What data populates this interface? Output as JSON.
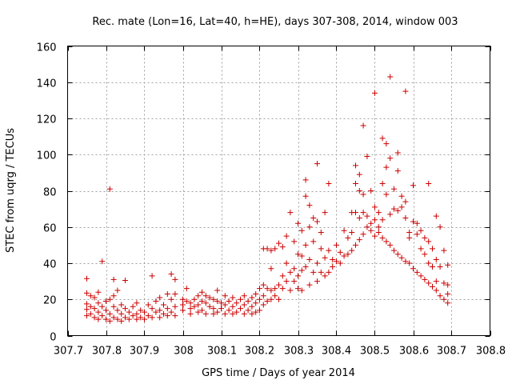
{
  "chart_data": {
    "type": "scatter",
    "title": "Rec. mate (Lon=16, Lat=40, h=HE), days 307-308, 2014, window 003",
    "xlabel": "GPS time / Days of year 2014",
    "ylabel": "STEC from uqrg / TECUs",
    "xlim": [
      307.7,
      308.8
    ],
    "ylim": [
      0,
      160
    ],
    "xticks": [
      307.7,
      307.8,
      307.9,
      308,
      308.1,
      308.2,
      308.3,
      308.4,
      308.5,
      308.6,
      308.7,
      308.8
    ],
    "xtick_labels": [
      "307.7",
      "307.8",
      "307.9",
      "308",
      "308.1",
      "308.2",
      "308.3",
      "308.4",
      "308.5",
      "308.6",
      "308.7",
      "308.8"
    ],
    "yticks": [
      0,
      20,
      40,
      60,
      80,
      100,
      120,
      140,
      160
    ],
    "ytick_labels": [
      "0",
      "20",
      "40",
      "60",
      "80",
      "100",
      "120",
      "140",
      "160"
    ],
    "grid": true,
    "marker": "+",
    "color": "#cc0000",
    "series": [
      {
        "name": "",
        "points": [
          [
            307.75,
            31.5
          ],
          [
            307.75,
            23.5
          ],
          [
            307.75,
            17.5
          ],
          [
            307.75,
            14.5
          ],
          [
            307.75,
            11
          ],
          [
            307.76,
            22
          ],
          [
            307.76,
            16
          ],
          [
            307.76,
            12
          ],
          [
            307.77,
            21
          ],
          [
            307.77,
            15
          ],
          [
            307.77,
            10
          ],
          [
            307.78,
            24
          ],
          [
            307.78,
            18
          ],
          [
            307.78,
            13
          ],
          [
            307.78,
            9
          ],
          [
            307.79,
            41
          ],
          [
            307.79,
            16
          ],
          [
            307.79,
            11
          ],
          [
            307.8,
            19
          ],
          [
            307.8,
            14
          ],
          [
            307.8,
            9
          ],
          [
            307.81,
            81
          ],
          [
            307.81,
            20
          ],
          [
            307.81,
            12
          ],
          [
            307.81,
            8
          ],
          [
            307.82,
            31
          ],
          [
            307.82,
            22
          ],
          [
            307.82,
            16
          ],
          [
            307.82,
            10
          ],
          [
            307.83,
            25
          ],
          [
            307.83,
            14
          ],
          [
            307.83,
            9
          ],
          [
            307.84,
            17
          ],
          [
            307.84,
            12
          ],
          [
            307.84,
            8
          ],
          [
            307.85,
            30.5
          ],
          [
            307.85,
            15
          ],
          [
            307.85,
            10
          ],
          [
            307.86,
            13
          ],
          [
            307.86,
            9
          ],
          [
            307.87,
            16
          ],
          [
            307.87,
            11
          ],
          [
            307.88,
            18
          ],
          [
            307.88,
            12
          ],
          [
            307.88,
            9
          ],
          [
            307.89,
            14
          ],
          [
            307.89,
            10
          ],
          [
            307.9,
            13
          ],
          [
            307.9,
            9
          ],
          [
            307.91,
            17
          ],
          [
            307.91,
            11
          ],
          [
            307.92,
            33
          ],
          [
            307.92,
            15
          ],
          [
            307.92,
            10
          ],
          [
            307.93,
            19
          ],
          [
            307.93,
            13
          ],
          [
            307.94,
            21
          ],
          [
            307.94,
            14
          ],
          [
            307.94,
            10
          ],
          [
            307.95,
            17
          ],
          [
            307.95,
            12
          ],
          [
            307.96,
            23
          ],
          [
            307.96,
            15
          ],
          [
            307.96,
            11
          ],
          [
            307.97,
            34
          ],
          [
            307.97,
            20
          ],
          [
            307.97,
            13
          ],
          [
            307.98,
            31
          ],
          [
            307.98,
            23
          ],
          [
            307.98,
            16
          ],
          [
            307.98,
            11
          ],
          [
            308.0,
            20
          ],
          [
            308.0,
            17
          ],
          [
            308.0,
            14
          ],
          [
            308.01,
            26
          ],
          [
            308.01,
            19
          ],
          [
            308.02,
            18
          ],
          [
            308.02,
            15
          ],
          [
            308.02,
            12
          ],
          [
            308.03,
            20
          ],
          [
            308.03,
            16
          ],
          [
            308.04,
            22
          ],
          [
            308.04,
            17
          ],
          [
            308.04,
            13
          ],
          [
            308.05,
            24
          ],
          [
            308.05,
            19
          ],
          [
            308.05,
            14
          ],
          [
            308.06,
            22
          ],
          [
            308.06,
            18
          ],
          [
            308.06,
            12
          ],
          [
            308.07,
            21
          ],
          [
            308.07,
            16
          ],
          [
            308.08,
            20
          ],
          [
            308.08,
            15
          ],
          [
            308.08,
            12
          ],
          [
            308.09,
            25
          ],
          [
            308.09,
            19
          ],
          [
            308.09,
            13
          ],
          [
            308.1,
            18
          ],
          [
            308.1,
            15
          ],
          [
            308.11,
            22
          ],
          [
            308.11,
            17
          ],
          [
            308.11,
            12
          ],
          [
            308.12,
            19
          ],
          [
            308.12,
            14
          ],
          [
            308.13,
            21
          ],
          [
            308.13,
            16
          ],
          [
            308.13,
            12
          ],
          [
            308.14,
            18
          ],
          [
            308.14,
            13
          ],
          [
            308.15,
            20
          ],
          [
            308.15,
            15
          ],
          [
            308.16,
            22
          ],
          [
            308.16,
            17
          ],
          [
            308.16,
            12
          ],
          [
            308.17,
            19
          ],
          [
            308.17,
            14
          ],
          [
            308.18,
            21
          ],
          [
            308.18,
            16
          ],
          [
            308.18,
            12
          ],
          [
            308.19,
            23
          ],
          [
            308.19,
            18
          ],
          [
            308.19,
            13
          ],
          [
            308.2,
            26
          ],
          [
            308.2,
            20
          ],
          [
            308.2,
            14
          ],
          [
            308.21,
            48
          ],
          [
            308.21,
            28
          ],
          [
            308.21,
            22
          ],
          [
            308.21,
            17
          ],
          [
            308.22,
            48
          ],
          [
            308.22,
            26
          ],
          [
            308.22,
            19
          ],
          [
            308.23,
            47
          ],
          [
            308.23,
            37
          ],
          [
            308.23,
            25
          ],
          [
            308.23,
            20
          ],
          [
            308.24,
            48
          ],
          [
            308.24,
            26
          ],
          [
            308.24,
            22
          ],
          [
            308.25,
            51
          ],
          [
            308.25,
            28
          ],
          [
            308.25,
            20
          ],
          [
            308.26,
            49
          ],
          [
            308.26,
            33
          ],
          [
            308.26,
            26
          ],
          [
            308.27,
            55
          ],
          [
            308.27,
            40
          ],
          [
            308.27,
            30
          ],
          [
            308.28,
            68
          ],
          [
            308.28,
            35
          ],
          [
            308.28,
            25
          ],
          [
            308.29,
            52
          ],
          [
            308.29,
            37
          ],
          [
            308.29,
            30
          ],
          [
            308.3,
            62
          ],
          [
            308.3,
            45
          ],
          [
            308.3,
            33
          ],
          [
            308.3,
            26
          ],
          [
            308.31,
            58
          ],
          [
            308.31,
            44
          ],
          [
            308.31,
            36
          ],
          [
            308.31,
            25
          ],
          [
            308.32,
            86
          ],
          [
            308.32,
            77
          ],
          [
            308.32,
            50
          ],
          [
            308.32,
            38
          ],
          [
            308.33,
            72
          ],
          [
            308.33,
            60
          ],
          [
            308.33,
            42
          ],
          [
            308.33,
            28
          ],
          [
            308.34,
            65
          ],
          [
            308.34,
            52
          ],
          [
            308.34,
            35
          ],
          [
            308.35,
            95
          ],
          [
            308.35,
            63
          ],
          [
            308.35,
            40
          ],
          [
            308.35,
            30
          ],
          [
            308.36,
            57
          ],
          [
            308.36,
            48
          ],
          [
            308.36,
            35
          ],
          [
            308.37,
            68
          ],
          [
            308.37,
            43
          ],
          [
            308.37,
            33
          ],
          [
            308.38,
            84
          ],
          [
            308.38,
            47
          ],
          [
            308.38,
            35
          ],
          [
            308.39,
            42
          ],
          [
            308.39,
            38
          ],
          [
            308.4,
            50
          ],
          [
            308.4,
            41
          ],
          [
            308.41,
            46
          ],
          [
            308.41,
            40
          ],
          [
            308.42,
            58
          ],
          [
            308.42,
            44
          ],
          [
            308.43,
            54
          ],
          [
            308.43,
            45
          ],
          [
            308.44,
            68
          ],
          [
            308.44,
            57
          ],
          [
            308.44,
            47
          ],
          [
            308.45,
            94
          ],
          [
            308.45,
            84
          ],
          [
            308.45,
            68
          ],
          [
            308.45,
            50
          ],
          [
            308.46,
            89
          ],
          [
            308.46,
            80
          ],
          [
            308.46,
            65
          ],
          [
            308.46,
            53
          ],
          [
            308.47,
            116
          ],
          [
            308.47,
            78
          ],
          [
            308.47,
            68
          ],
          [
            308.47,
            56
          ],
          [
            308.48,
            99
          ],
          [
            308.48,
            66
          ],
          [
            308.48,
            60
          ],
          [
            308.49,
            80
          ],
          [
            308.49,
            62
          ],
          [
            308.49,
            58
          ],
          [
            308.5,
            134
          ],
          [
            308.5,
            71
          ],
          [
            308.5,
            64
          ],
          [
            308.5,
            55
          ],
          [
            308.51,
            68
          ],
          [
            308.51,
            60
          ],
          [
            308.51,
            57
          ],
          [
            308.52,
            109
          ],
          [
            308.52,
            84
          ],
          [
            308.52,
            64
          ],
          [
            308.52,
            54
          ],
          [
            308.53,
            106
          ],
          [
            308.53,
            93
          ],
          [
            308.53,
            78
          ],
          [
            308.53,
            52
          ],
          [
            308.54,
            143
          ],
          [
            308.54,
            98
          ],
          [
            308.54,
            67
          ],
          [
            308.54,
            50
          ],
          [
            308.55,
            81
          ],
          [
            308.55,
            70
          ],
          [
            308.55,
            47
          ],
          [
            308.56,
            101
          ],
          [
            308.56,
            91
          ],
          [
            308.56,
            69
          ],
          [
            308.56,
            45
          ],
          [
            308.57,
            77
          ],
          [
            308.57,
            71
          ],
          [
            308.57,
            43
          ],
          [
            308.58,
            135
          ],
          [
            308.58,
            74
          ],
          [
            308.58,
            65
          ],
          [
            308.58,
            41
          ],
          [
            308.59,
            57
          ],
          [
            308.59,
            54
          ],
          [
            308.59,
            40
          ],
          [
            308.6,
            83
          ],
          [
            308.6,
            63
          ],
          [
            308.6,
            37
          ],
          [
            308.61,
            62
          ],
          [
            308.61,
            56
          ],
          [
            308.61,
            35
          ],
          [
            308.62,
            58
          ],
          [
            308.62,
            48
          ],
          [
            308.62,
            33
          ],
          [
            308.63,
            54
          ],
          [
            308.63,
            45
          ],
          [
            308.63,
            31
          ],
          [
            308.64,
            84
          ],
          [
            308.64,
            52
          ],
          [
            308.64,
            40
          ],
          [
            308.64,
            29
          ],
          [
            308.65,
            48
          ],
          [
            308.65,
            38
          ],
          [
            308.65,
            27
          ],
          [
            308.66,
            66
          ],
          [
            308.66,
            42
          ],
          [
            308.66,
            30
          ],
          [
            308.66,
            25
          ],
          [
            308.67,
            60
          ],
          [
            308.67,
            38
          ],
          [
            308.67,
            22
          ],
          [
            308.68,
            47
          ],
          [
            308.68,
            29
          ],
          [
            308.68,
            20
          ],
          [
            308.69,
            39
          ],
          [
            308.69,
            28
          ],
          [
            308.69,
            23
          ],
          [
            308.69,
            18
          ]
        ]
      }
    ]
  }
}
